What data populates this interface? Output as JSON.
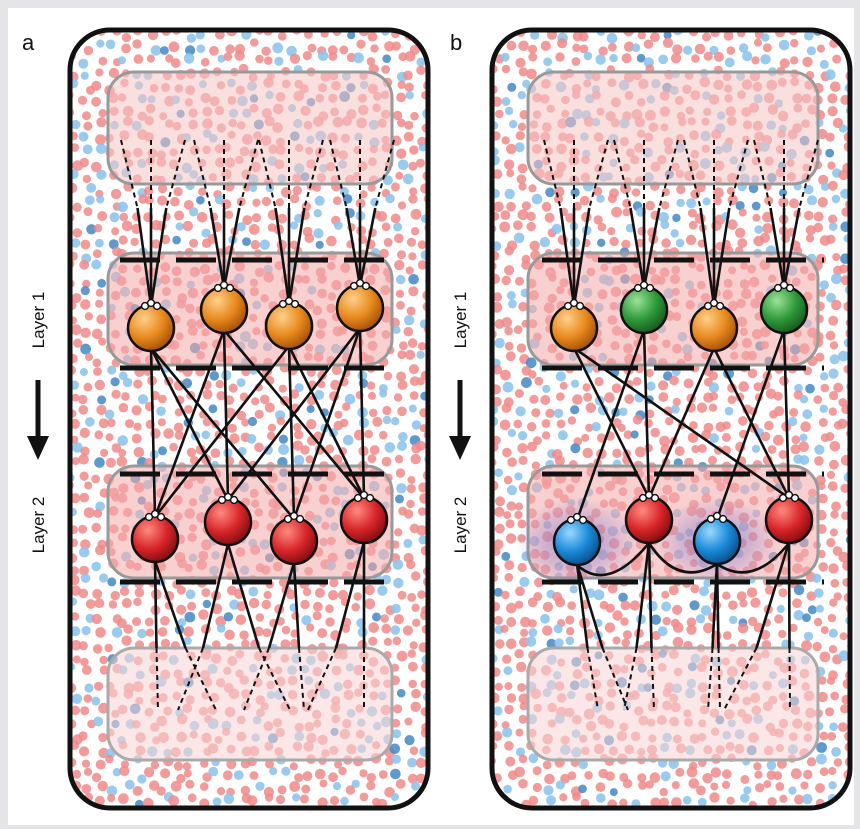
{
  "panels": [
    {
      "letter": "a",
      "layer1_label": "Layer 1",
      "layer2_label": "Layer 2",
      "layer1_neurons": [
        "orange",
        "orange",
        "orange",
        "orange"
      ],
      "layer2_neurons": [
        "red",
        "red",
        "red",
        "red"
      ]
    },
    {
      "letter": "b",
      "layer1_label": "Layer 1",
      "layer2_label": "Layer 2",
      "layer1_neurons": [
        "orange",
        "green",
        "orange",
        "green"
      ],
      "layer2_neurons": [
        "blue",
        "red",
        "blue",
        "red"
      ]
    }
  ],
  "colors": {
    "orange": "#e88a1e",
    "green": "#2f9a3a",
    "red": "#d9262a",
    "blue": "#1a8ad8",
    "dot_pink": "#f08a8a",
    "dot_blue": "#8fc4ec",
    "band_fill": "#f6b2b2"
  }
}
